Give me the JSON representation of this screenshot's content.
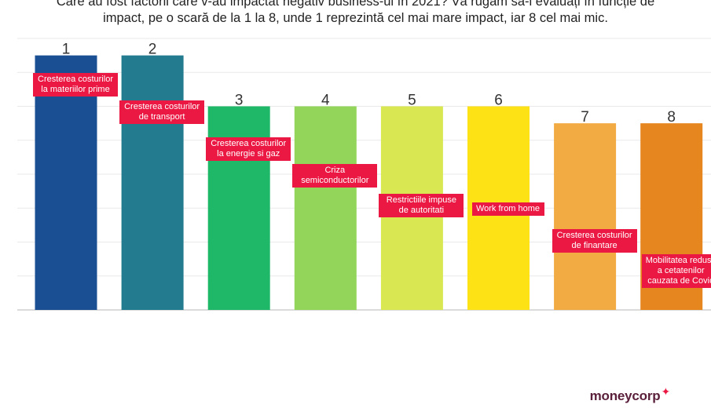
{
  "chart_data": {
    "type": "bar",
    "title_lines": [
      "Care au fost factorii care v-au impactat negativ business-ul în 2021? Vă rugăm să-i evaluați în funcție de",
      "impact, pe o scară de la 1 la 8, unde 1 reprezintă cel mai mare impact, iar 8 cel mai mic."
    ],
    "categories": [
      "Cresterea costurilor la materiilor prime",
      "Cresterea costurilor de transport",
      "Cresterea costurilor la energie si gaz",
      "Criza semiconductorilor",
      "Restrictiile impuse de autoritati",
      "Work from home",
      "Cresterea costurilor de finantare",
      "Mobilitatea redusa a cetatenilor cauzata de Covid"
    ],
    "label_lines": [
      [
        "Cresterea costurilor",
        "la materiilor prime"
      ],
      [
        "Cresterea costurilor",
        "de transport"
      ],
      [
        "Cresterea costurilor",
        "la energie si gaz"
      ],
      [
        "Criza",
        "semiconductorilor"
      ],
      [
        "Restrictiile impuse",
        "de autoritati"
      ],
      [
        "Work from home"
      ],
      [
        "Cresterea costurilor",
        "de finantare"
      ],
      [
        "Mobilitatea redusa",
        "a cetatenilor",
        "cauzata de Covid"
      ]
    ],
    "ranks": [
      "1",
      "2",
      "3",
      "4",
      "5",
      "6",
      "7",
      "8"
    ],
    "values": [
      7.5,
      7.5,
      6.0,
      6.0,
      6.0,
      6.0,
      5.5,
      5.5
    ],
    "ylim": [
      0,
      8
    ],
    "colors": [
      "#1b4f93",
      "#227b8f",
      "#1eb868",
      "#92d55a",
      "#d9e752",
      "#fde316",
      "#f2ab42",
      "#e5861f"
    ],
    "grid": true,
    "xlabel": "",
    "ylabel": ""
  },
  "brand": {
    "name": "moneycorp",
    "symbol": "✦"
  }
}
